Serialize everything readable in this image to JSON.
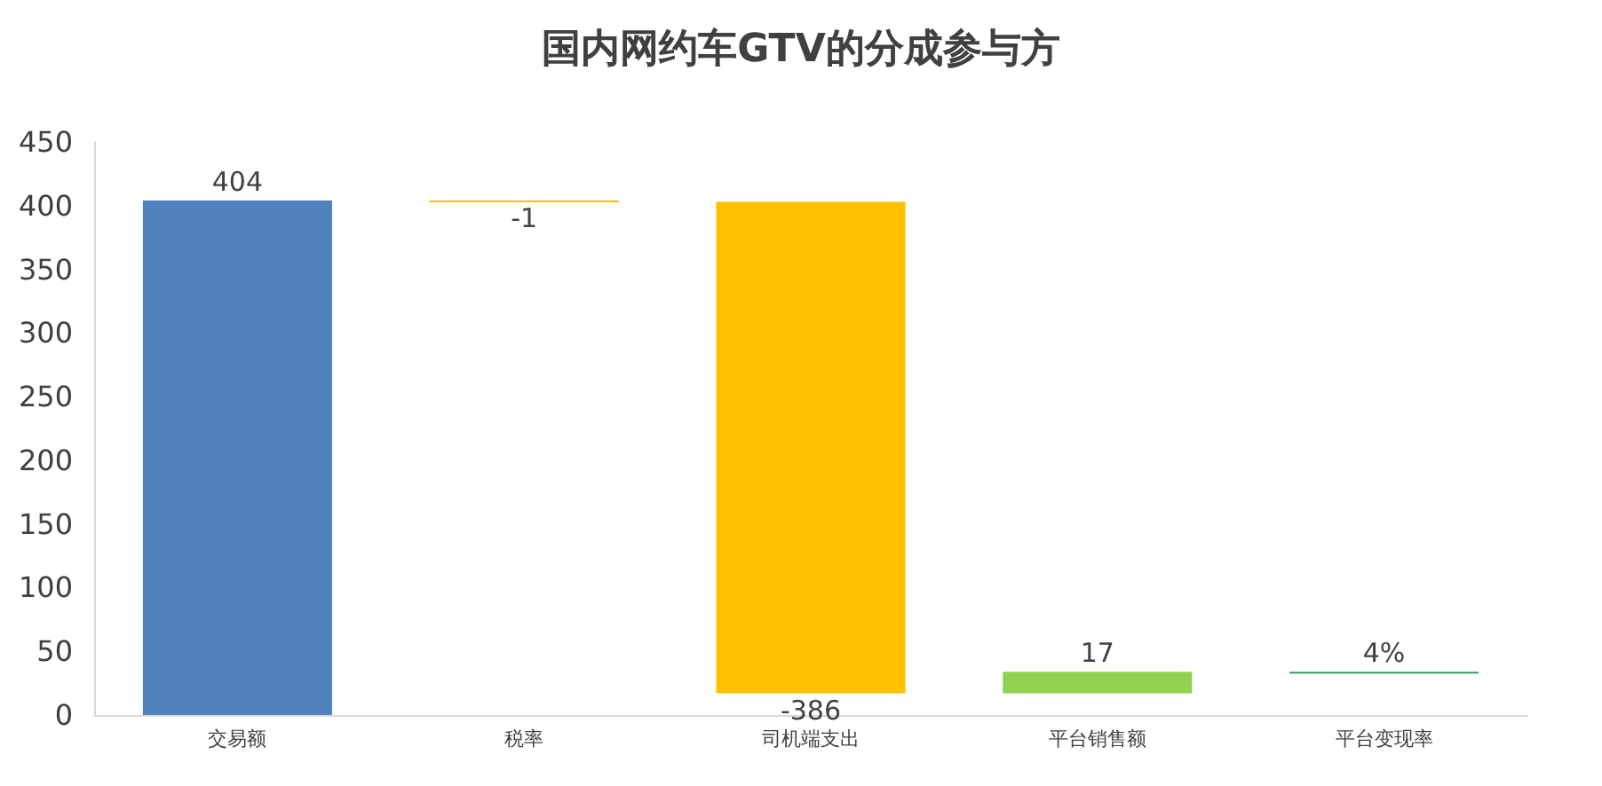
{
  "chart_data": {
    "type": "bar",
    "title": "国内网约车GTV的分成参与方",
    "categories": [
      "交易额",
      "税率",
      "司机端支出",
      "平台销售额",
      "平台变现率"
    ],
    "values": [
      404,
      -1,
      -386,
      17,
      0.04
    ],
    "base": [
      0,
      404,
      403,
      17,
      34
    ],
    "value_labels": [
      "404",
      "-1",
      "-386",
      "17",
      "4%"
    ],
    "colors": [
      "#4f81bd",
      "#ffc000",
      "#ffc000",
      "#92d050",
      "#2e9e5f"
    ],
    "ylim": [
      0,
      450
    ],
    "yticks": [
      0,
      50,
      100,
      150,
      200,
      250,
      300,
      350,
      400,
      450
    ],
    "grid": false
  }
}
